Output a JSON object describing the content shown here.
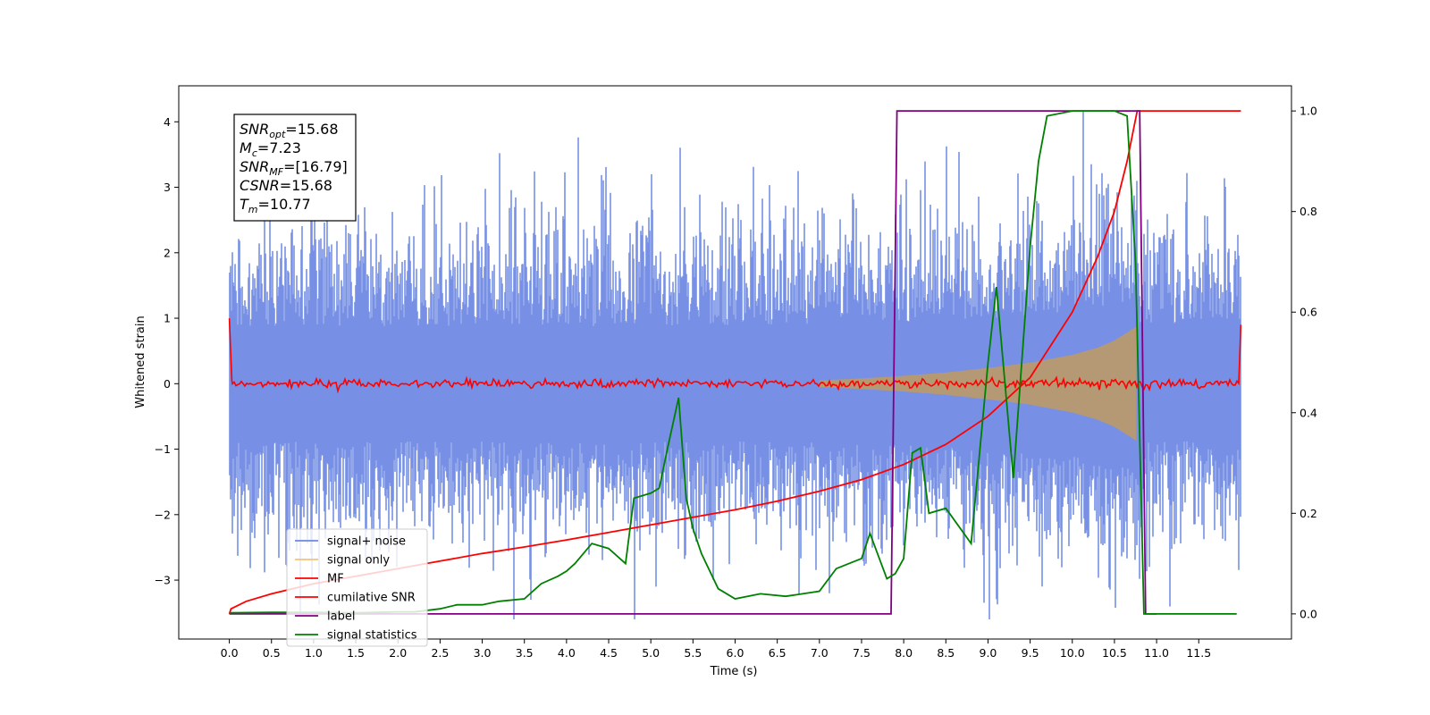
{
  "chart_data": {
    "type": "line",
    "xlabel": "Time (s)",
    "ylabel": "Whitened strain",
    "xlim": [
      -0.6,
      12.6
    ],
    "ylim": [
      -3.9,
      4.55
    ],
    "y2lim": [
      -0.05,
      1.05
    ],
    "x_ticks": [
      0.0,
      0.5,
      1.0,
      1.5,
      2.0,
      2.5,
      3.0,
      3.5,
      4.0,
      4.5,
      5.0,
      5.5,
      6.0,
      6.5,
      7.0,
      7.5,
      8.0,
      8.5,
      9.0,
      9.5,
      10.0,
      10.5,
      11.0,
      11.5
    ],
    "x_tick_labels": [
      "0.0",
      "0.5",
      "1.0",
      "1.5",
      "2.0",
      "2.5",
      "3.0",
      "3.5",
      "4.0",
      "4.5",
      "5.0",
      "5.5",
      "6.0",
      "6.5",
      "7.0",
      "7.5",
      "8.0",
      "8.5",
      "9.0",
      "9.5",
      "10.0",
      "10.5",
      "11.0",
      "11.5"
    ],
    "y_ticks": [
      -3,
      -2,
      -1,
      0,
      1,
      2,
      3,
      4
    ],
    "y_tick_labels": [
      "−3",
      "−2",
      "−1",
      "0",
      "1",
      "2",
      "3",
      "4"
    ],
    "y2_ticks": [
      0.0,
      0.2,
      0.4,
      0.6,
      0.8,
      1.0
    ],
    "y2_tick_labels": [
      "0.0",
      "0.2",
      "0.4",
      "0.6",
      "0.8",
      "1.0"
    ],
    "grid": false,
    "legend_position": "lower-left",
    "annotation": {
      "position": "top-left",
      "lines": [
        {
          "base": "SNR",
          "sub": "opt",
          "value": "=15.68"
        },
        {
          "base": "M",
          "sub": "c",
          "value": "=7.23"
        },
        {
          "base": "SNR",
          "sub": "MF",
          "value": "=[16.79]"
        },
        {
          "base": "CSNR",
          "sub": "",
          "value": "=15.68"
        },
        {
          "base": "T",
          "sub": "m",
          "value": "=10.77"
        }
      ]
    },
    "noise": {
      "x_range": [
        0.0,
        12.0
      ],
      "approx_min": -3.6,
      "approx_max": 4.17,
      "typical_amplitude": 1.6
    },
    "signal_envelope": {
      "x": [
        7.0,
        7.5,
        8.0,
        8.5,
        9.0,
        9.5,
        10.0,
        10.3,
        10.5,
        10.65,
        10.77
      ],
      "amplitude": [
        0.05,
        0.08,
        0.12,
        0.17,
        0.24,
        0.32,
        0.44,
        0.55,
        0.66,
        0.78,
        0.88
      ]
    },
    "series": [
      {
        "name": "signal+ noise",
        "color": "#6b87e3",
        "axis": "left",
        "values_desc": "noise"
      },
      {
        "name": "signal only",
        "color": "#f5c27a",
        "axis": "left"
      },
      {
        "name": "MF",
        "color": "#ff0000",
        "axis": "left",
        "start_value": 1.0,
        "baseline": 0.0,
        "end_value": 0.9
      },
      {
        "name": "cumilative SNR",
        "color": "#ff0000",
        "axis": "right",
        "x": [
          0.0,
          0.02,
          0.2,
          0.5,
          1.0,
          1.5,
          2.0,
          2.5,
          3.0,
          3.5,
          4.0,
          4.5,
          5.0,
          5.5,
          6.0,
          6.5,
          7.0,
          7.5,
          8.0,
          8.5,
          9.0,
          9.5,
          10.0,
          10.3,
          10.5,
          10.65,
          10.77,
          11.0,
          12.0
        ],
        "y": [
          0.0,
          0.01,
          0.025,
          0.04,
          0.06,
          0.075,
          0.09,
          0.105,
          0.12,
          0.133,
          0.147,
          0.162,
          0.177,
          0.192,
          0.207,
          0.224,
          0.244,
          0.267,
          0.297,
          0.337,
          0.393,
          0.47,
          0.6,
          0.71,
          0.8,
          0.9,
          1.0,
          1.0,
          1.0
        ]
      },
      {
        "name": "label",
        "color": "#800080",
        "axis": "right",
        "x": [
          0.0,
          7.85,
          7.92,
          10.8,
          10.87,
          11.0
        ],
        "y": [
          0.0,
          0.0,
          1.0,
          1.0,
          0.0,
          0.0
        ]
      },
      {
        "name": "signal statistics",
        "color": "#008000",
        "axis": "right",
        "x": [
          0.0,
          0.5,
          1.0,
          1.5,
          2.0,
          2.2,
          2.5,
          2.7,
          3.0,
          3.2,
          3.5,
          3.7,
          3.9,
          4.0,
          4.1,
          4.3,
          4.5,
          4.7,
          4.8,
          5.0,
          5.1,
          5.2,
          5.33,
          5.42,
          5.5,
          5.6,
          5.8,
          6.0,
          6.3,
          6.6,
          6.8,
          7.0,
          7.2,
          7.35,
          7.5,
          7.6,
          7.8,
          7.9,
          8.0,
          8.1,
          8.2,
          8.3,
          8.5,
          8.8,
          9.0,
          9.1,
          9.3,
          9.5,
          9.6,
          9.7,
          10.0,
          10.5,
          10.65,
          10.75,
          10.85,
          11.0,
          11.95
        ],
        "y": [
          0.002,
          0.003,
          0.003,
          0.002,
          0.004,
          0.004,
          0.01,
          0.018,
          0.018,
          0.025,
          0.03,
          0.06,
          0.075,
          0.085,
          0.1,
          0.14,
          0.13,
          0.1,
          0.23,
          0.24,
          0.25,
          0.33,
          0.43,
          0.23,
          0.17,
          0.12,
          0.05,
          0.03,
          0.04,
          0.035,
          0.04,
          0.045,
          0.09,
          0.1,
          0.11,
          0.16,
          0.07,
          0.08,
          0.11,
          0.32,
          0.33,
          0.2,
          0.21,
          0.14,
          0.5,
          0.65,
          0.27,
          0.73,
          0.9,
          0.99,
          1.0,
          1.0,
          0.99,
          0.7,
          0.0,
          0.0,
          0.0
        ]
      }
    ]
  }
}
